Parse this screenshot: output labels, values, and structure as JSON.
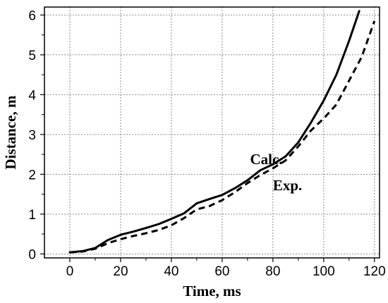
{
  "chart_data": {
    "type": "line",
    "title": "",
    "xlabel": "Time, ms",
    "ylabel": "Distance, m",
    "xlim": [
      -10,
      122
    ],
    "ylim": [
      -0.1,
      6.2
    ],
    "xticks": [
      0,
      20,
      40,
      60,
      80,
      100,
      120
    ],
    "yticks": [
      0,
      1,
      2,
      3,
      4,
      5,
      6
    ],
    "grid": true,
    "legend": "none",
    "annotations": [
      {
        "text": "Calc.",
        "x": 71,
        "y": 2.25
      },
      {
        "text": "Exp.",
        "x": 80,
        "y": 1.6
      }
    ],
    "series": [
      {
        "name": "Calc.",
        "style": "solid",
        "color": "#000000",
        "x": [
          0,
          5,
          10,
          15,
          20,
          25,
          30,
          35,
          40,
          45,
          50,
          55,
          60,
          65,
          70,
          75,
          80,
          85,
          90,
          95,
          100,
          105,
          110,
          114
        ],
        "y": [
          0.04,
          0.07,
          0.15,
          0.35,
          0.48,
          0.56,
          0.65,
          0.75,
          0.88,
          1.02,
          1.27,
          1.38,
          1.48,
          1.65,
          1.85,
          2.1,
          2.25,
          2.45,
          2.8,
          3.3,
          3.85,
          4.5,
          5.35,
          6.1
        ]
      },
      {
        "name": "Exp.",
        "style": "dashed",
        "color": "#000000",
        "x": [
          0,
          5,
          10,
          15,
          20,
          25,
          30,
          35,
          40,
          45,
          50,
          55,
          60,
          65,
          70,
          75,
          80,
          85,
          90,
          95,
          100,
          105,
          110,
          115,
          120
        ],
        "y": [
          0.04,
          0.06,
          0.13,
          0.27,
          0.37,
          0.45,
          0.52,
          0.6,
          0.72,
          0.9,
          1.12,
          1.2,
          1.35,
          1.55,
          1.78,
          1.98,
          2.15,
          2.35,
          2.7,
          3.1,
          3.4,
          3.75,
          4.35,
          4.95,
          5.85
        ]
      }
    ]
  }
}
